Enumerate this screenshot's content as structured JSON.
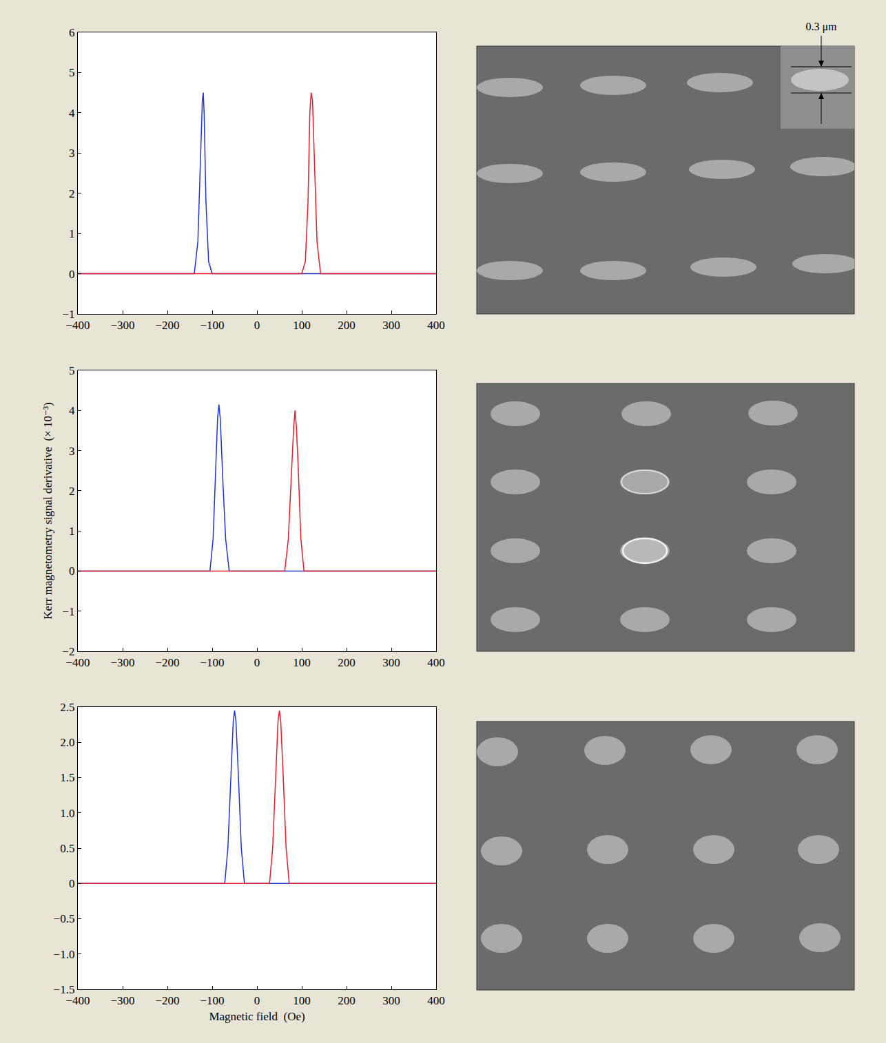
{
  "chart_data": [
    {
      "type": "line",
      "grid": false,
      "xlim": [
        -400,
        400
      ],
      "xticks": [
        {
          "value": -400,
          "label": "−400"
        },
        {
          "value": -300,
          "label": "−300"
        },
        {
          "value": -200,
          "label": "−200"
        },
        {
          "value": -100,
          "label": "−100"
        },
        0,
        100,
        200,
        300,
        400
      ],
      "ylim": [
        -1,
        6
      ],
      "yticks": [
        {
          "value": -1,
          "label": "−1"
        },
        0,
        1,
        2,
        3,
        4,
        5,
        6
      ],
      "series": [
        {
          "color": "#1f35d6",
          "x": [
            -400,
            -140,
            -132,
            -126,
            -122,
            -120,
            -118,
            -114,
            -108,
            -100,
            400
          ],
          "values": [
            0,
            0,
            0.8,
            2.8,
            4.3,
            4.5,
            4.0,
            1.8,
            0.3,
            0,
            0
          ]
        },
        {
          "color": "#e3202b",
          "x": [
            -400,
            100,
            108,
            114,
            118,
            121,
            124,
            128,
            134,
            142,
            400
          ],
          "values": [
            0,
            0,
            0.3,
            1.8,
            4.0,
            4.5,
            4.3,
            2.8,
            0.8,
            0,
            0
          ]
        }
      ]
    },
    {
      "type": "line",
      "grid": false,
      "ylabel": "Kerr magnetometry signal derivative  (× 10⁻³)",
      "xlim": [
        -400,
        400
      ],
      "xticks": [
        {
          "value": -400,
          "label": "−400"
        },
        {
          "value": -300,
          "label": "−300"
        },
        {
          "value": -200,
          "label": "−200"
        },
        {
          "value": -100,
          "label": "−100"
        },
        0,
        100,
        200,
        300,
        400
      ],
      "ylim": [
        -2,
        5
      ],
      "yticks": [
        {
          "value": -2,
          "label": "−2"
        },
        {
          "value": -1,
          "label": "−1"
        },
        0,
        1,
        2,
        3,
        4,
        5
      ],
      "series": [
        {
          "color": "#1f35d6",
          "x": [
            -400,
            -105,
            -98,
            -92,
            -88,
            -85,
            -82,
            -76,
            -70,
            -62,
            400
          ],
          "values": [
            0,
            0,
            0.8,
            2.6,
            3.8,
            4.15,
            3.8,
            2.2,
            0.8,
            0,
            0
          ]
        },
        {
          "color": "#e3202b",
          "x": [
            -400,
            62,
            70,
            76,
            82,
            85,
            88,
            92,
            98,
            105,
            400
          ],
          "values": [
            0,
            0,
            0.8,
            2.2,
            3.6,
            4.0,
            3.6,
            2.6,
            0.8,
            0,
            0
          ]
        }
      ]
    },
    {
      "type": "line",
      "grid": false,
      "xlabel": "Magnetic field  (Oe)",
      "xlim": [
        -400,
        400
      ],
      "xticks": [
        {
          "value": -400,
          "label": "−400"
        },
        {
          "value": -300,
          "label": "−300"
        },
        {
          "value": -200,
          "label": "−200"
        },
        {
          "value": -100,
          "label": "−100"
        },
        0,
        100,
        200,
        300,
        400
      ],
      "ylim": [
        -1.5,
        2.5
      ],
      "yticks": [
        {
          "value": -1.5,
          "label": "−1.5"
        },
        {
          "value": -1,
          "label": "−1.0"
        },
        {
          "value": -0.5,
          "label": "−0.5"
        },
        0,
        0.5,
        {
          "value": 1,
          "label": "1.0"
        },
        1.5,
        {
          "value": 2,
          "label": "2.0"
        },
        2.5
      ],
      "series": [
        {
          "color": "#1f35d6",
          "x": [
            -400,
            -72,
            -65,
            -58,
            -53,
            -50,
            -47,
            -42,
            -35,
            -28,
            400
          ],
          "values": [
            0,
            0,
            0.5,
            1.6,
            2.3,
            2.45,
            2.3,
            1.6,
            0.5,
            0,
            0
          ]
        },
        {
          "color": "#e3202b",
          "x": [
            -400,
            28,
            35,
            42,
            47,
            50,
            53,
            58,
            65,
            72,
            400
          ],
          "values": [
            0,
            0,
            0.5,
            1.6,
            2.3,
            2.45,
            2.3,
            1.6,
            0.5,
            0,
            0
          ]
        }
      ]
    }
  ],
  "micrographs": {
    "scale_bar_label": "0.3 μm"
  }
}
